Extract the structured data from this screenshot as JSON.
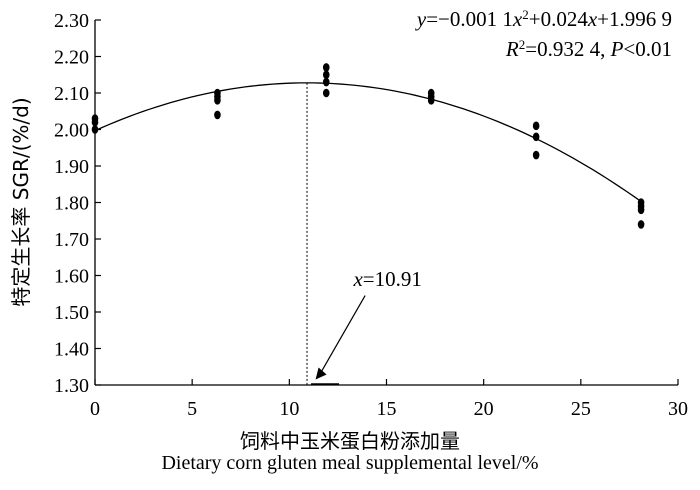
{
  "chart_data": {
    "type": "scatter",
    "xlabel_cn": "饲料中玉米蛋白粉添加量",
    "xlabel_en": "Dietary corn gluten meal supplemental level/%",
    "ylabel": "特定生长率 SGR/(%/d)",
    "xlim": [
      0,
      30
    ],
    "ylim": [
      1.3,
      2.3
    ],
    "xticks": [
      0,
      5,
      10,
      15,
      20,
      25,
      30
    ],
    "xtick_labels": [
      "0",
      "5",
      "10",
      "15",
      "20",
      "25",
      "30"
    ],
    "yticks": [
      1.3,
      1.4,
      1.5,
      1.6,
      1.7,
      1.8,
      1.9,
      2.0,
      2.1,
      2.2,
      2.3
    ],
    "ytick_labels": [
      "1.30",
      "1.40",
      "1.50",
      "1.60",
      "1.70",
      "1.80",
      "1.90",
      "2.00",
      "2.10",
      "2.20",
      "2.30"
    ],
    "points": [
      {
        "x": 0,
        "y": 2.0
      },
      {
        "x": 0,
        "y": 2.02
      },
      {
        "x": 0,
        "y": 2.03
      },
      {
        "x": 6.3,
        "y": 2.04
      },
      {
        "x": 6.3,
        "y": 2.08
      },
      {
        "x": 6.3,
        "y": 2.09
      },
      {
        "x": 6.3,
        "y": 2.1
      },
      {
        "x": 11.9,
        "y": 2.1
      },
      {
        "x": 11.9,
        "y": 2.13
      },
      {
        "x": 11.9,
        "y": 2.15
      },
      {
        "x": 11.9,
        "y": 2.17
      },
      {
        "x": 17.3,
        "y": 2.08
      },
      {
        "x": 17.3,
        "y": 2.09
      },
      {
        "x": 17.3,
        "y": 2.1
      },
      {
        "x": 22.7,
        "y": 1.93
      },
      {
        "x": 22.7,
        "y": 1.98
      },
      {
        "x": 22.7,
        "y": 2.01
      },
      {
        "x": 28.1,
        "y": 1.74
      },
      {
        "x": 28.1,
        "y": 1.78
      },
      {
        "x": 28.1,
        "y": 1.79
      },
      {
        "x": 28.1,
        "y": 1.8
      }
    ],
    "fit": {
      "a": -0.0011,
      "b": 0.024,
      "c": 1.9969,
      "x_range": [
        0,
        28.1
      ]
    },
    "equation": {
      "line1_parts": [
        "y",
        "=−0.001 1",
        "x",
        "2",
        "+0.024",
        "x",
        "+1.996 9"
      ],
      "line2_parts": [
        "R",
        "2",
        "=0.932 4, ",
        "P",
        "<0.01"
      ]
    },
    "optimum": {
      "x": 10.91,
      "label_var": "x",
      "label_value": "=10.91"
    },
    "grid": false,
    "series_color": "#000000"
  }
}
